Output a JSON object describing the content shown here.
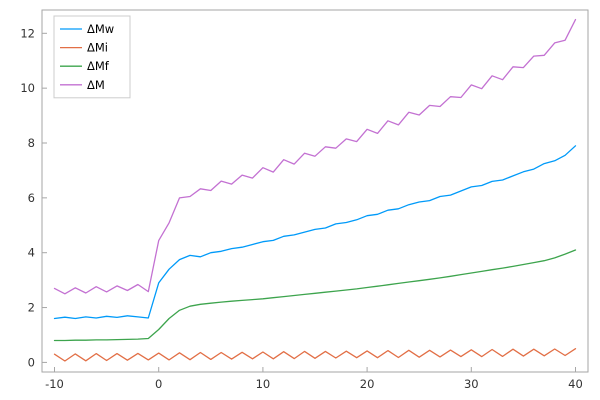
{
  "chart_data": {
    "type": "line",
    "title": "",
    "xlabel": "",
    "ylabel": "",
    "grid": false,
    "legend_position": "top-left",
    "xlim": [
      -11.2,
      41.2
    ],
    "ylim": [
      -0.35,
      12.85
    ],
    "xticks": [
      -10,
      0,
      10,
      20,
      30,
      40
    ],
    "yticks": [
      0,
      2,
      4,
      6,
      8,
      10,
      12
    ],
    "x": [
      -10,
      -9,
      -8,
      -7,
      -6,
      -5,
      -4,
      -3,
      -2,
      -1,
      0,
      1,
      2,
      3,
      4,
      5,
      6,
      7,
      8,
      9,
      10,
      11,
      12,
      13,
      14,
      15,
      16,
      17,
      18,
      19,
      20,
      21,
      22,
      23,
      24,
      25,
      26,
      27,
      28,
      29,
      30,
      31,
      32,
      33,
      34,
      35,
      36,
      37,
      38,
      39,
      40
    ],
    "series": [
      {
        "name": "ΔMw",
        "color": "#009af9",
        "values": [
          1.6,
          1.65,
          1.6,
          1.66,
          1.62,
          1.68,
          1.64,
          1.7,
          1.66,
          1.62,
          2.9,
          3.4,
          3.75,
          3.9,
          3.85,
          4.0,
          4.05,
          4.15,
          4.2,
          4.3,
          4.4,
          4.45,
          4.6,
          4.65,
          4.75,
          4.85,
          4.9,
          5.05,
          5.1,
          5.2,
          5.35,
          5.4,
          5.55,
          5.6,
          5.75,
          5.85,
          5.9,
          6.05,
          6.1,
          6.25,
          6.4,
          6.45,
          6.6,
          6.65,
          6.8,
          6.95,
          7.05,
          7.25,
          7.35,
          7.55,
          7.9
        ]
      },
      {
        "name": "ΔMi",
        "color": "#e26f46",
        "values": [
          0.3,
          0.05,
          0.31,
          0.06,
          0.32,
          0.07,
          0.32,
          0.08,
          0.33,
          0.09,
          0.34,
          0.09,
          0.35,
          0.1,
          0.36,
          0.11,
          0.36,
          0.12,
          0.37,
          0.13,
          0.38,
          0.13,
          0.39,
          0.14,
          0.4,
          0.15,
          0.4,
          0.16,
          0.41,
          0.17,
          0.42,
          0.17,
          0.43,
          0.18,
          0.44,
          0.19,
          0.44,
          0.2,
          0.45,
          0.21,
          0.46,
          0.21,
          0.47,
          0.22,
          0.48,
          0.23,
          0.48,
          0.24,
          0.49,
          0.25,
          0.5
        ]
      },
      {
        "name": "ΔMf",
        "color": "#3da44d",
        "values": [
          0.8,
          0.8,
          0.81,
          0.81,
          0.82,
          0.82,
          0.83,
          0.84,
          0.85,
          0.87,
          1.2,
          1.6,
          1.9,
          2.05,
          2.12,
          2.16,
          2.2,
          2.23,
          2.26,
          2.29,
          2.32,
          2.36,
          2.4,
          2.44,
          2.48,
          2.52,
          2.56,
          2.6,
          2.64,
          2.68,
          2.73,
          2.78,
          2.83,
          2.88,
          2.93,
          2.98,
          3.03,
          3.08,
          3.14,
          3.2,
          3.26,
          3.32,
          3.38,
          3.44,
          3.5,
          3.57,
          3.64,
          3.71,
          3.81,
          3.95,
          4.1
        ]
      },
      {
        "name": "ΔM",
        "color": "#c371d2",
        "values": [
          2.7,
          2.5,
          2.72,
          2.53,
          2.76,
          2.57,
          2.79,
          2.62,
          2.84,
          2.58,
          4.44,
          5.09,
          6.0,
          6.05,
          6.33,
          6.27,
          6.61,
          6.5,
          6.83,
          6.72,
          7.1,
          6.94,
          7.39,
          7.23,
          7.63,
          7.52,
          7.86,
          7.81,
          8.15,
          8.05,
          8.5,
          8.35,
          8.81,
          8.66,
          9.12,
          9.02,
          9.37,
          9.33,
          9.69,
          9.66,
          10.12,
          9.98,
          10.45,
          10.31,
          10.78,
          10.75,
          11.17,
          11.2,
          11.65,
          11.75,
          12.5
        ]
      }
    ],
    "style": {
      "frame_color": "#a6a6a6",
      "tick_label_color": "#333333",
      "legend_border_color": "#cccccc",
      "legend_bg_color": "#ffffff",
      "background": "#ffffff",
      "line_width": 1.3
    }
  }
}
